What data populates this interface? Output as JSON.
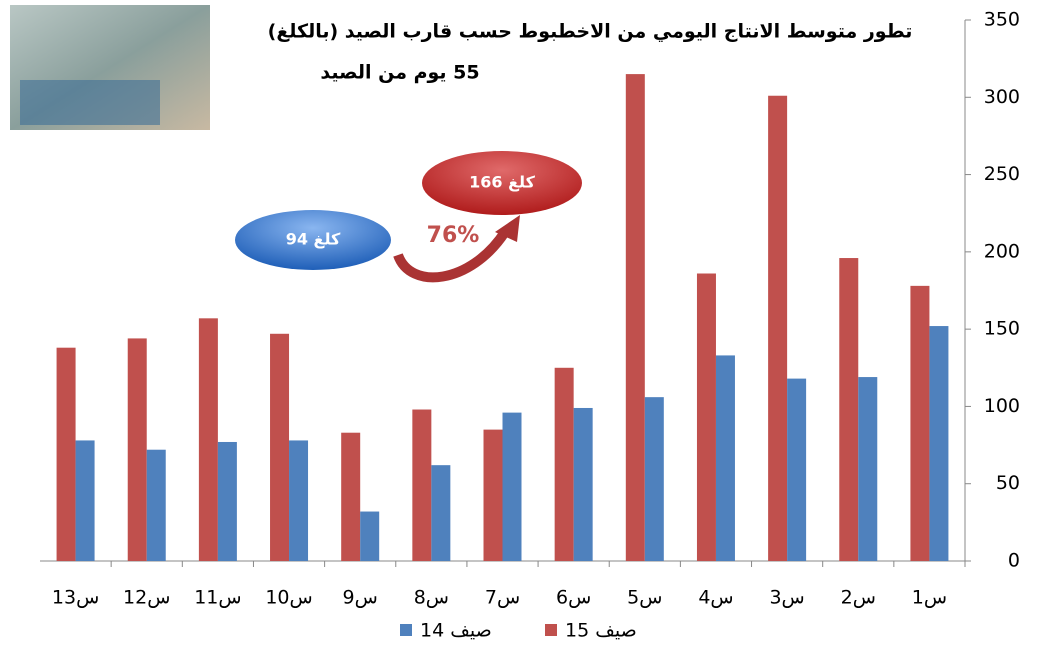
{
  "chart_data": {
    "type": "bar",
    "title": "تطور متوسط الانتاج اليومي من الاخطبوط حسب قارب الصيد (بالكلغ)",
    "subtitle": "55 يوم من الصيد",
    "categories": [
      "س1",
      "س2",
      "س3",
      "س4",
      "س5",
      "س6",
      "س7",
      "س8",
      "س9",
      "س10",
      "س11",
      "س12",
      "س13"
    ],
    "series": [
      {
        "name": "صيف 15",
        "color": "#c0504d",
        "values": [
          178,
          196,
          301,
          186,
          315,
          125,
          85,
          98,
          83,
          147,
          157,
          144,
          138
        ]
      },
      {
        "name": "صيف 14",
        "color": "#4f81bd",
        "values": [
          152,
          119,
          118,
          133,
          106,
          99,
          96,
          62,
          32,
          78,
          77,
          72,
          78
        ]
      }
    ],
    "ylim": [
      0,
      350
    ],
    "yticks": [
      0,
      50,
      100,
      150,
      200,
      250,
      300,
      350
    ],
    "annotations": {
      "before": "كلغ 94",
      "after": "كلغ 166",
      "change": "76%"
    }
  }
}
